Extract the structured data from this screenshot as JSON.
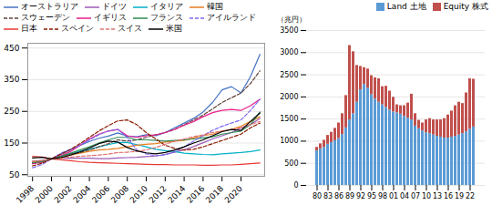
{
  "chart_data": [
    {
      "type": "line",
      "x": [
        1998,
        1999,
        2000,
        2001,
        2002,
        2003,
        2004,
        2005,
        2006,
        2007,
        2008,
        2009,
        2010,
        2011,
        2012,
        2013,
        2014,
        2015,
        2016,
        2017,
        2018,
        2019,
        2020,
        2021,
        2022
      ],
      "xlim": [
        1997.5,
        2022.5
      ],
      "xticks": [
        1998,
        2000,
        2002,
        2004,
        2006,
        2008,
        2010,
        2012,
        2014,
        2016,
        2018,
        2020
      ],
      "ylim": [
        45,
        465
      ],
      "yticks": [
        50,
        150,
        250,
        350,
        450
      ],
      "grid": true,
      "legend": "upper left",
      "series": [
        {
          "name": "オーストラリア",
          "color": "#4472c4",
          "line_style": "solid",
          "values": [
            92,
            95,
            100,
            115,
            128,
            142,
            155,
            165,
            172,
            182,
            172,
            170,
            176,
            173,
            183,
            198,
            213,
            228,
            248,
            278,
            318,
            328,
            308,
            360,
            430
          ]
        },
        {
          "name": "ドイツ",
          "color": "#9b59b6",
          "line_style": "solid",
          "values": [
            88,
            90,
            100,
            102,
            102,
            102,
            102,
            101,
            101,
            103,
            104,
            105,
            107,
            109,
            114,
            121,
            129,
            139,
            151,
            163,
            173,
            183,
            198,
            208,
            228
          ]
        },
        {
          "name": "イタリア",
          "color": "#00b0c8",
          "line_style": "solid",
          "values": [
            88,
            93,
            100,
            108,
            116,
            124,
            130,
            138,
            145,
            152,
            152,
            145,
            138,
            130,
            126,
            123,
            118,
            116,
            114,
            113,
            116,
            118,
            120,
            123,
            128
          ]
        },
        {
          "name": "韓国",
          "color": "#e67e22",
          "line_style": "solid",
          "values": [
            90,
            93,
            100,
            104,
            112,
            118,
            124,
            128,
            130,
            133,
            138,
            143,
            146,
            148,
            153,
            156,
            158,
            166,
            173,
            178,
            188,
            193,
            203,
            218,
            233
          ]
        },
        {
          "name": "スウェーデン",
          "color": "#5d4037",
          "line_style": "dashed",
          "values": [
            85,
            90,
            100,
            108,
            115,
            120,
            128,
            138,
            148,
            160,
            156,
            160,
            168,
            176,
            183,
            193,
            208,
            223,
            238,
            258,
            278,
            293,
            308,
            338,
            378
          ]
        },
        {
          "name": "イギリス",
          "color": "#e91e8c",
          "line_style": "solid",
          "values": [
            85,
            90,
            100,
            110,
            123,
            143,
            163,
            178,
            188,
            193,
            173,
            168,
            173,
            176,
            183,
            193,
            206,
            218,
            233,
            246,
            253,
            256,
            253,
            268,
            288
          ]
        },
        {
          "name": "フランス",
          "color": "#2e8b57",
          "line_style": "solid",
          "values": [
            88,
            91,
            100,
            108,
            118,
            128,
            138,
            150,
            160,
            168,
            168,
            160,
            160,
            158,
            156,
            158,
            160,
            163,
            166,
            170,
            178,
            183,
            188,
            208,
            248
          ]
        },
        {
          "name": "アイルランド",
          "color": "#7b68ee",
          "line_style": "dashed",
          "values": [
            72,
            82,
            100,
            118,
            130,
            143,
            160,
            176,
            188,
            193,
            168,
            128,
            116,
            110,
            113,
            123,
            138,
            156,
            173,
            190,
            203,
            213,
            223,
            253,
            288
          ]
        },
        {
          "name": "日本",
          "color": "#e53935",
          "line_style": "solid",
          "values": [
            108,
            106,
            100,
            97,
            94,
            91,
            89,
            88,
            87,
            86,
            85,
            84,
            83,
            82,
            82,
            81,
            81,
            81,
            80,
            80,
            81,
            81,
            83,
            85,
            87
          ]
        },
        {
          "name": "スペイン",
          "color": "#8b1a00",
          "line_style": "dashed",
          "values": [
            78,
            86,
            100,
            115,
            130,
            148,
            168,
            188,
            205,
            220,
            223,
            208,
            183,
            163,
            143,
            133,
            128,
            130,
            138,
            148,
            158,
            168,
            178,
            198,
            213
          ]
        },
        {
          "name": "スイス",
          "color": "#e07070",
          "line_style": "dashed",
          "values": [
            93,
            95,
            100,
            103,
            106,
            108,
            110,
            112,
            115,
            120,
            121,
            124,
            128,
            136,
            146,
            156,
            163,
            170,
            176,
            183,
            188,
            193,
            198,
            208,
            218
          ]
        },
        {
          "name": "米国",
          "color": "#000000",
          "line_style": "solid",
          "values": [
            103,
            105,
            100,
            104,
            112,
            122,
            134,
            148,
            156,
            153,
            136,
            125,
            119,
            116,
            120,
            128,
            138,
            150,
            160,
            173,
            186,
            193,
            190,
            218,
            245
          ]
        }
      ]
    },
    {
      "type": "bar",
      "stacked": true,
      "ylabel": "（兆円）",
      "categories": [
        "80",
        null,
        null,
        "83",
        null,
        null,
        "86",
        null,
        null,
        "89",
        null,
        null,
        "92",
        null,
        null,
        "95",
        null,
        null,
        "98",
        null,
        null,
        "01",
        null,
        null,
        "04",
        null,
        null,
        "07",
        null,
        null,
        "10",
        null,
        null,
        "13",
        null,
        null,
        "16",
        null,
        null,
        "19",
        null,
        null,
        "22",
        null
      ],
      "ylim": [
        0,
        3500
      ],
      "yticks": [
        0,
        500,
        1000,
        1500,
        2000,
        2500,
        3000,
        3500
      ],
      "grid": true,
      "legend": "upper right",
      "series": [
        {
          "name": "Land 土地",
          "color": "#5b9bd5",
          "values": [
            780,
            820,
            860,
            930,
            970,
            1010,
            1060,
            1150,
            1300,
            1480,
            1620,
            1880,
            2160,
            2280,
            2200,
            2050,
            1950,
            1880,
            1820,
            1760,
            1700,
            1660,
            1640,
            1610,
            1560,
            1520,
            1480,
            1340,
            1280,
            1230,
            1190,
            1170,
            1140,
            1110,
            1090,
            1070,
            1070,
            1090,
            1110,
            1140,
            1170,
            1210,
            1270,
            1320
          ]
        },
        {
          "name": "Equity 株式",
          "color": "#c0504d",
          "values": [
            80,
            120,
            160,
            200,
            230,
            280,
            350,
            470,
            730,
            1680,
            1400,
            830,
            530,
            380,
            430,
            430,
            480,
            530,
            410,
            480,
            430,
            330,
            180,
            190,
            240,
            340,
            580,
            280,
            190,
            180,
            290,
            340,
            340,
            370,
            390,
            440,
            520,
            590,
            690,
            740,
            680,
            880,
            1140,
            1080
          ]
        }
      ]
    }
  ]
}
